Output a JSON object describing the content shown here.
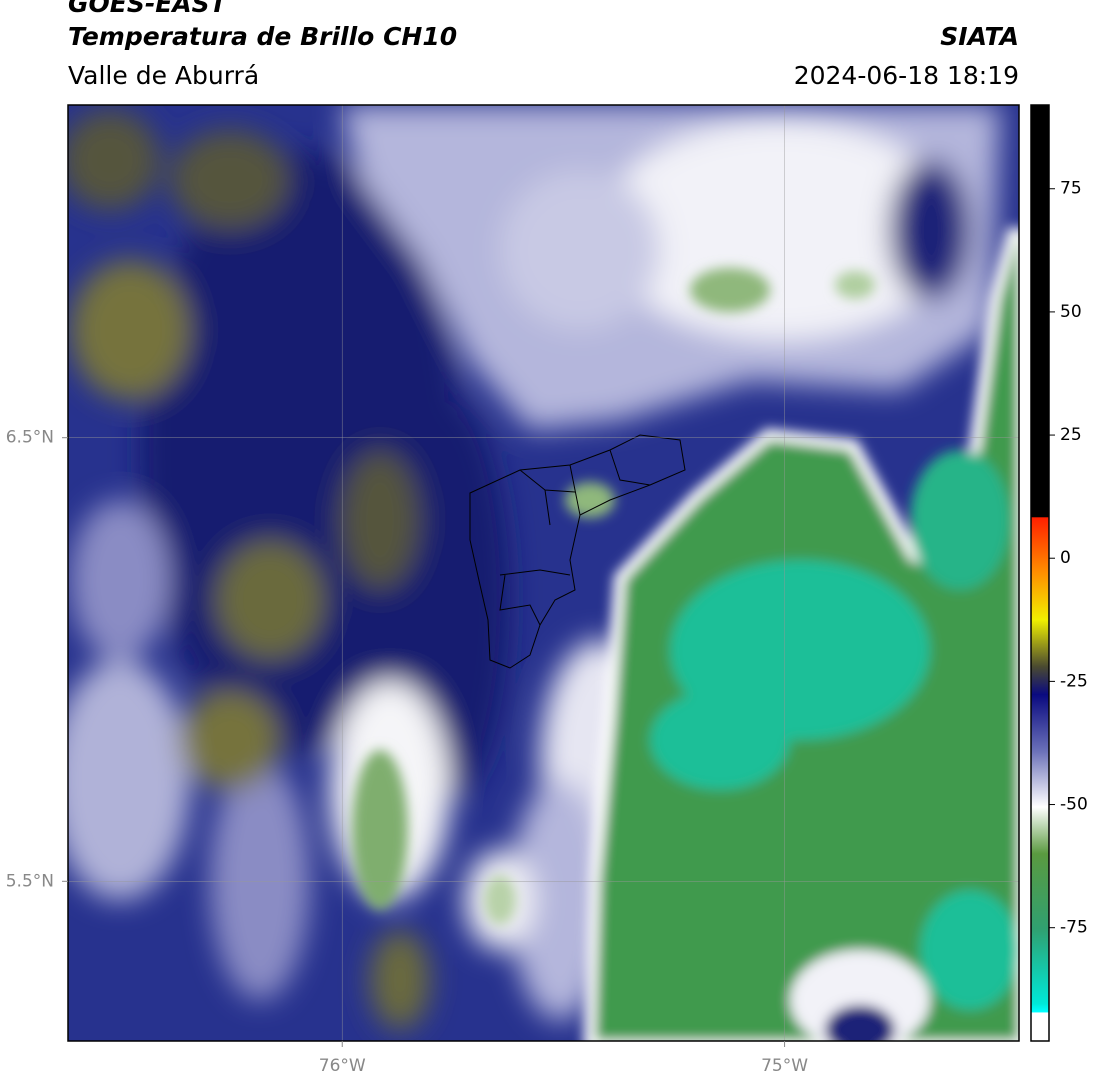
{
  "header": {
    "satellite": "GOES-EAST",
    "product": "Temperatura de Brillo CH10",
    "region": "Valle de Aburrá",
    "agency": "SIATA",
    "datetime": "2024-06-18 18:19"
  },
  "map": {
    "xlim": [
      -76.62,
      -74.47
    ],
    "ylim": [
      5.14,
      7.25
    ],
    "xticks": [
      {
        "value": -76,
        "label": "76°W"
      },
      {
        "value": -75,
        "label": "75°W"
      }
    ],
    "yticks": [
      {
        "value": 6.5,
        "label": "6.5°N"
      },
      {
        "value": 5.5,
        "label": "5.5°N"
      }
    ],
    "grid": true
  },
  "colorbar": {
    "lim": [
      -98,
      92
    ],
    "ticks": [
      75,
      50,
      25,
      0,
      -25,
      -50,
      -75
    ]
  }
}
